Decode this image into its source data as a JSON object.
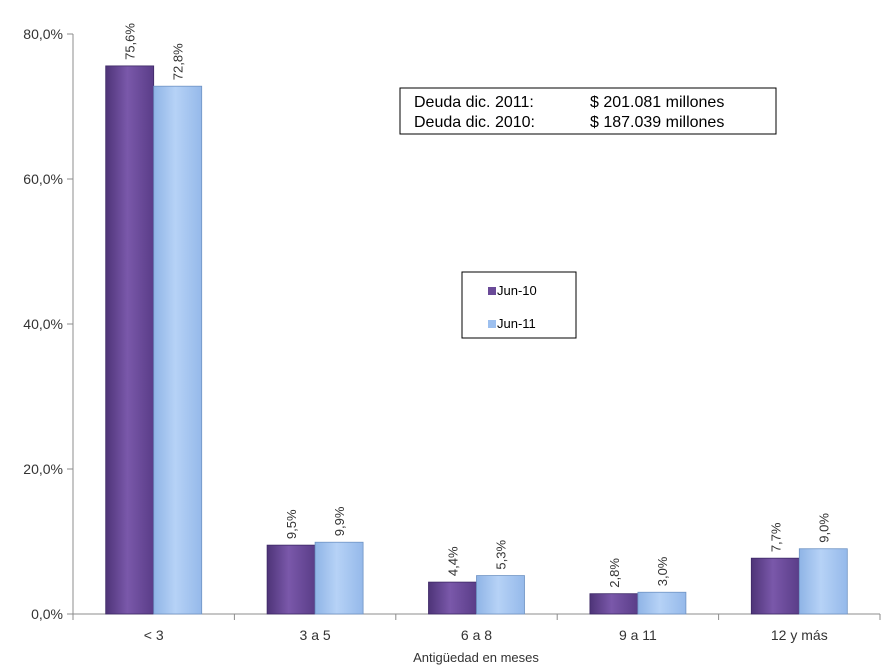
{
  "chart_data": {
    "type": "bar",
    "title": "",
    "xlabel": "Antigüedad en meses",
    "ylabel": "",
    "ylim": [
      0,
      80
    ],
    "yticks": [
      "0,0%",
      "20,0%",
      "40,0%",
      "60,0%",
      "80,0%"
    ],
    "categories": [
      "< 3",
      "3 a 5",
      "6 a 8",
      "9 a 11",
      "12 y más"
    ],
    "series": [
      {
        "name": "Jun-10",
        "color": "#6a4a98",
        "values": [
          75.6,
          9.5,
          4.4,
          2.8,
          7.7
        ],
        "labels": [
          "75,6%",
          "9,5%",
          "4,4%",
          "2,8%",
          "7,7%"
        ]
      },
      {
        "name": "Jun-11",
        "color": "#9dc0ef",
        "values": [
          72.8,
          9.9,
          5.3,
          3.0,
          9.0
        ],
        "labels": [
          "72,8%",
          "9,9%",
          "5,3%",
          "3,0%",
          "9,0%"
        ]
      }
    ],
    "legend_position": "center",
    "grid": false,
    "annotation": {
      "rows": [
        {
          "label": "Deuda dic. 2011:",
          "value": "$ 201.081 millones"
        },
        {
          "label": "Deuda dic. 2010:",
          "value": "$ 187.039 millones"
        }
      ]
    }
  }
}
